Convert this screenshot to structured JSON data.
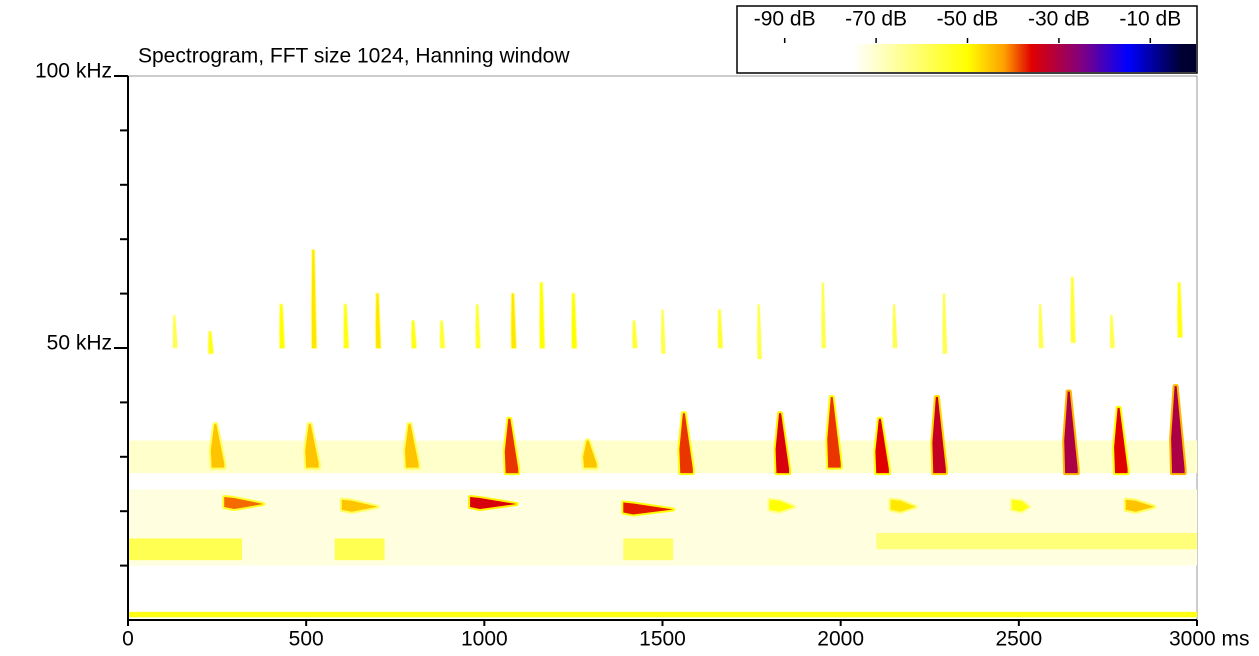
{
  "chart_data": {
    "type": "spectrogram",
    "title": "Spectrogram, FFT size 1024, Hanning window",
    "xlim": [
      0,
      3000
    ],
    "xticks": [
      0,
      500,
      1000,
      1500,
      2000,
      2500,
      {
        "value": 3000,
        "label": "3000 ms"
      }
    ],
    "ylim": [
      0,
      100
    ],
    "yticks": [
      {
        "value": 50,
        "label": "50 kHz"
      },
      {
        "value": 100,
        "label": "100 kHz"
      }
    ],
    "yminorticks": [
      10,
      20,
      30,
      40,
      60,
      70,
      80,
      90
    ],
    "colorbar": {
      "lim": [
        -100,
        0
      ],
      "ticks": [
        {
          "value": -90,
          "label": "-90 dB"
        },
        {
          "value": -70,
          "label": "-70 dB"
        },
        {
          "value": -50,
          "label": "-50 dB"
        },
        {
          "value": -30,
          "label": "-30 dB"
        },
        {
          "value": -10,
          "label": "-10 dB"
        }
      ],
      "scale": [
        {
          "value": -75,
          "color": "#ffffff"
        },
        {
          "value": -50,
          "color": "#ffff00"
        },
        {
          "value": -42,
          "color": "#ffa000"
        },
        {
          "value": -36,
          "color": "#e00000"
        },
        {
          "value": -25,
          "color": "#800080"
        },
        {
          "value": -15,
          "color": "#0000ff"
        },
        {
          "value": -3,
          "color": "#000030"
        }
      ]
    },
    "bands": {
      "x_start": [
        0,
        0,
        0,
        580,
        1390,
        2100,
        0
      ],
      "x_end": [
        3000,
        3000,
        320,
        720,
        1530,
        3000,
        3000
      ],
      "f_low": [
        27,
        10,
        11,
        11,
        11,
        13,
        0.5
      ],
      "f_high": [
        33,
        24,
        15,
        15,
        15,
        16,
        1.5
      ],
      "db": [
        -70,
        -72,
        -58,
        -58,
        -60,
        -62,
        -52
      ]
    },
    "tones": {
      "x_start": [
        270,
        600,
        960,
        1390,
        1800,
        2140,
        2480,
        2800
      ],
      "x_end": [
        380,
        700,
        1090,
        1530,
        1870,
        2210,
        2530,
        2880
      ],
      "f": [
        21.5,
        21,
        21.5,
        20.5,
        21,
        21,
        21,
        21
      ],
      "db": [
        -40,
        -45,
        -35,
        -37,
        -50,
        -48,
        -52,
        -45
      ]
    },
    "sweeps": {
      "x": [
        245,
        510,
        790,
        1070,
        1290,
        1560,
        1830,
        1975,
        2110,
        2270,
        2640,
        2780,
        2940
      ],
      "f_high": [
        36,
        36,
        36,
        37,
        33,
        38,
        38,
        41,
        37,
        41,
        42,
        39,
        43
      ],
      "f_low": [
        28,
        28,
        28,
        27,
        28,
        27,
        27,
        28,
        27,
        27,
        27,
        27,
        27
      ],
      "db": [
        -45,
        -45,
        -45,
        -38,
        -45,
        -38,
        -35,
        -38,
        -36,
        -33,
        -30,
        -36,
        -30
      ]
    },
    "harmonics": {
      "x": [
        130,
        230,
        430,
        520,
        610,
        700,
        800,
        880,
        980,
        1080,
        1160,
        1250,
        1420,
        1500,
        1660,
        1770,
        1950,
        2150,
        2290,
        2560,
        2650,
        2760,
        2950
      ],
      "f_high": [
        56,
        53,
        58,
        68,
        58,
        60,
        55,
        55,
        58,
        60,
        62,
        60,
        55,
        57,
        57,
        58,
        62,
        58,
        60,
        58,
        63,
        56,
        62
      ],
      "f_low": [
        50,
        49,
        50,
        50,
        50,
        50,
        50,
        50,
        50,
        50,
        50,
        50,
        50,
        49,
        50,
        48,
        50,
        50,
        49,
        50,
        51,
        50,
        52
      ],
      "db": [
        -58,
        -52,
        -50,
        -48,
        -52,
        -48,
        -52,
        -55,
        -55,
        -48,
        -50,
        -50,
        -55,
        -58,
        -55,
        -58,
        -58,
        -58,
        -58,
        -58,
        -55,
        -58,
        -52
      ]
    }
  }
}
